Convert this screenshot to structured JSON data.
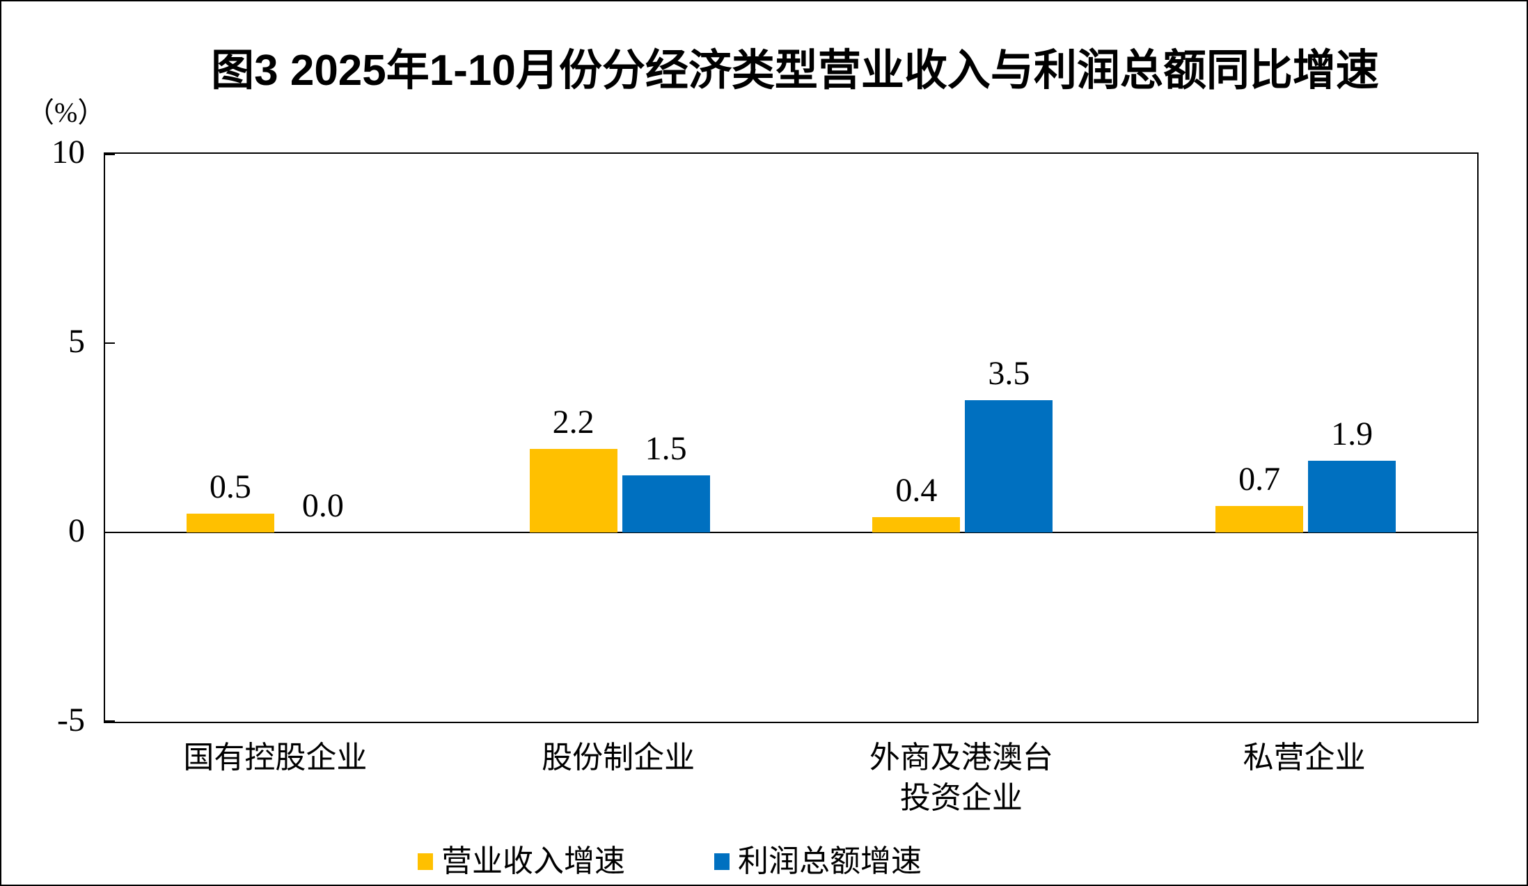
{
  "figure": {
    "title": "图3  2025年1-10月份分经济类型营业收入与利润总额同比增速",
    "unit_label": "（%）"
  },
  "chart_data": {
    "type": "bar",
    "title": "图3  2025年1-10月份分经济类型营业收入与利润总额同比增速",
    "unit_label": "（%）",
    "categories": [
      {
        "lines": [
          "国有控股企业"
        ]
      },
      {
        "lines": [
          "股份制企业"
        ]
      },
      {
        "lines": [
          "外商及港澳台",
          "投资企业"
        ]
      },
      {
        "lines": [
          "私营企业"
        ]
      }
    ],
    "series": [
      {
        "name": "营业收入增速",
        "color": "#FFC000",
        "values": [
          0.5,
          2.2,
          0.4,
          0.7
        ],
        "labels": [
          "0.5",
          "2.2",
          "0.4",
          "0.7"
        ]
      },
      {
        "name": "利润总额增速",
        "color": "#0070C0",
        "values": [
          0.0,
          1.5,
          3.5,
          1.9
        ],
        "labels": [
          "0.0",
          "1.5",
          "3.5",
          "1.9"
        ]
      }
    ],
    "ylim": [
      -5,
      10
    ],
    "yticks": [
      10,
      5,
      0,
      -5
    ],
    "grid": false,
    "legend_position": "bottom",
    "axis_color": "#000000",
    "background_color": "#FFFFFF",
    "value_labels_shown": true
  }
}
